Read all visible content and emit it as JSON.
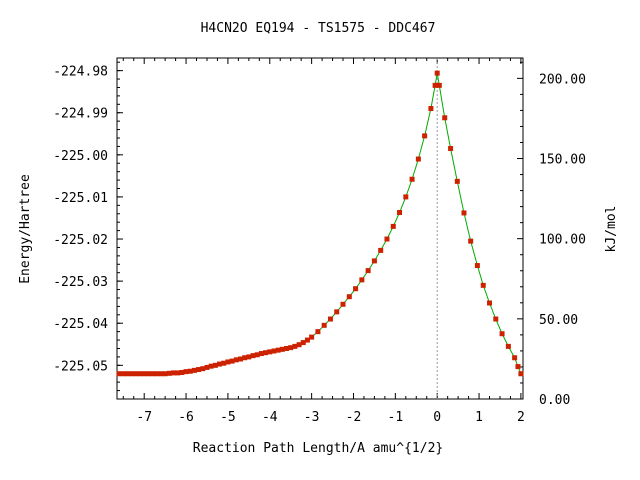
{
  "chart_data": {
    "type": "line",
    "title": "H4CN2O   EQ194 - TS1575 - DDC467",
    "xlabel": "Reaction Path Length/A amu^{1/2}",
    "ylabel": "Energy/Hartree",
    "y2label": "kJ/mol",
    "xlim": [
      -7.65,
      2.05
    ],
    "ylim": [
      -225.058,
      -224.977
    ],
    "y2lim": [
      0.0,
      212.7
    ],
    "x_ticks": [
      -7,
      -6,
      -5,
      -4,
      -3,
      -2,
      -1,
      0,
      1,
      2
    ],
    "x_tick_labels": [
      "-7",
      "-6",
      "-5",
      "-4",
      "-3",
      "-2",
      "-1",
      "0",
      "1",
      "2"
    ],
    "y_ticks": [
      -224.98,
      -224.99,
      -225.0,
      -225.01,
      -225.02,
      -225.03,
      -225.04,
      -225.05
    ],
    "y_tick_labels": [
      "-224.98",
      "-224.99",
      "-225.00",
      "-225.01",
      "-225.02",
      "-225.03",
      "-225.04",
      "-225.05"
    ],
    "y2_ticks": [
      200,
      150,
      100,
      50,
      0
    ],
    "y2_tick_labels": [
      "200.00",
      "150.00",
      "100.00",
      "50.00",
      "0.00"
    ],
    "ts_x": 0.0,
    "grid": false,
    "legend": "none",
    "colors": {
      "curve": "#00aa00",
      "points": "#cc2200",
      "ts_line": "#999999"
    },
    "series": [
      {
        "x": [
          -7.6,
          -7.5,
          -7.4,
          -7.3,
          -7.2,
          -7.1,
          -7.0,
          -6.9,
          -6.8,
          -6.7,
          -6.6,
          -6.5,
          -6.4,
          -6.3,
          -6.2,
          -6.1,
          -6.0,
          -5.9,
          -5.8,
          -5.7,
          -5.6,
          -5.5,
          -5.4,
          -5.3,
          -5.2,
          -5.1,
          -5.0,
          -4.9,
          -4.8,
          -4.7,
          -4.6,
          -4.5,
          -4.4,
          -4.3,
          -4.2,
          -4.1,
          -4.0,
          -3.9,
          -3.8,
          -3.7,
          -3.6,
          -3.5,
          -3.4,
          -3.3,
          -3.2,
          -3.1,
          -3.0,
          -2.85,
          -2.7,
          -2.55,
          -2.4,
          -2.25,
          -2.1,
          -1.95,
          -1.8,
          -1.65,
          -1.5,
          -1.35,
          -1.2,
          -1.05,
          -0.9,
          -0.75,
          -0.6,
          -0.45,
          -0.3,
          -0.15,
          -0.05,
          0.0,
          0.05,
          0.18,
          0.32,
          0.48,
          0.64,
          0.8,
          0.96,
          1.1,
          1.25,
          1.4,
          1.55,
          1.7,
          1.85,
          1.93,
          2.0
        ],
        "y": [
          -225.052,
          -225.052,
          -225.052,
          -225.052,
          -225.052,
          -225.052,
          -225.052,
          -225.052,
          -225.052,
          -225.052,
          -225.052,
          -225.052,
          -225.0519,
          -225.0518,
          -225.0518,
          -225.0517,
          -225.0515,
          -225.0514,
          -225.0512,
          -225.051,
          -225.0508,
          -225.0505,
          -225.0502,
          -225.05,
          -225.0497,
          -225.0495,
          -225.0492,
          -225.049,
          -225.0487,
          -225.0485,
          -225.0482,
          -225.048,
          -225.0477,
          -225.0475,
          -225.0472,
          -225.047,
          -225.0468,
          -225.0466,
          -225.0464,
          -225.0462,
          -225.046,
          -225.0458,
          -225.0455,
          -225.0451,
          -225.0446,
          -225.044,
          -225.0433,
          -225.042,
          -225.0405,
          -225.039,
          -225.0373,
          -225.0355,
          -225.0337,
          -225.0318,
          -225.0297,
          -225.0275,
          -225.0252,
          -225.0227,
          -225.02,
          -225.017,
          -225.0137,
          -225.01,
          -225.0058,
          -225.001,
          -224.9955,
          -224.989,
          -224.9835,
          -224.9806,
          -224.9835,
          -224.9912,
          -224.9985,
          -225.0063,
          -225.0138,
          -225.0205,
          -225.0263,
          -225.031,
          -225.0352,
          -225.039,
          -225.0425,
          -225.0455,
          -225.0482,
          -225.0503,
          -225.052
        ]
      }
    ]
  }
}
